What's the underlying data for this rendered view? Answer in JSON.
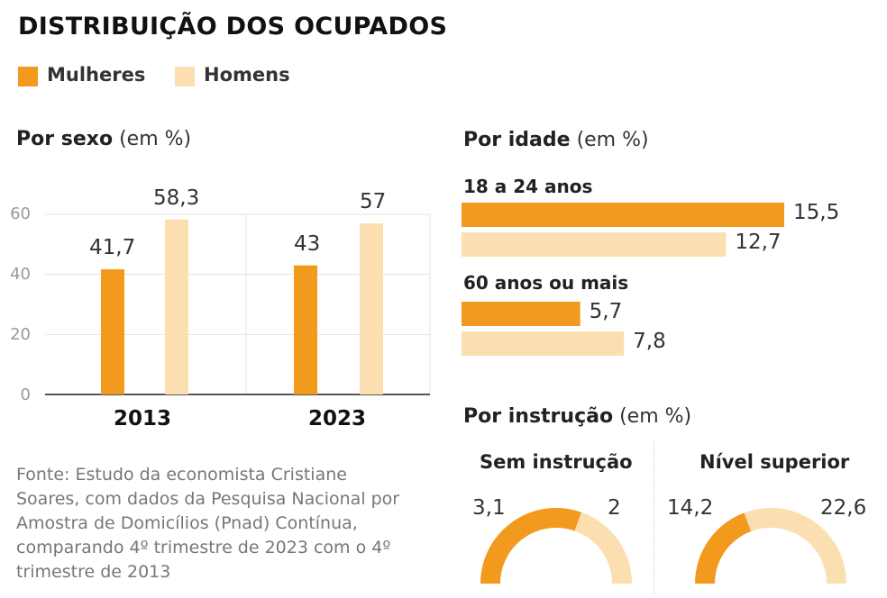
{
  "title": "DISTRIBUIÇÃO DOS OCUPADOS",
  "colors": {
    "mulheres": "#f29a1e",
    "homens": "#fbdfb0",
    "grid": "#e3e3e3",
    "axis": "#555555"
  },
  "legend": [
    {
      "label": "Mulheres",
      "color": "#f29a1e"
    },
    {
      "label": "Homens",
      "color": "#fbdfb0"
    }
  ],
  "sections": {
    "sexo": {
      "bold": "Por sexo",
      "unit": "(em %)"
    },
    "idade": {
      "bold": "Por idade",
      "unit": "(em %)"
    },
    "instrucao": {
      "bold": "Por instrução",
      "unit": "(em %)"
    }
  },
  "source": "Fonte: Estudo da economista Cristiane Soares, com dados da Pesquisa Nacional por Amostra de Domicílios (Pnad) Contínua, comparando 4º trimestre de 2023 com o 4º trimestre de 2013",
  "chart_data": [
    {
      "type": "bar",
      "title": "Por sexo (em %)",
      "categories": [
        "2013",
        "2023"
      ],
      "series": [
        {
          "name": "Mulheres",
          "values": [
            41.7,
            43
          ],
          "labels": [
            "41,7",
            "43"
          ]
        },
        {
          "name": "Homens",
          "values": [
            58.3,
            57
          ],
          "labels": [
            "58,3",
            "57"
          ]
        }
      ],
      "ylim": [
        0,
        60
      ],
      "yticks": [
        "0",
        "20",
        "40",
        "60"
      ],
      "grid": true
    },
    {
      "type": "bar",
      "orientation": "horizontal",
      "title": "Por idade (em %)",
      "categories": [
        "18 a 24 anos",
        "60 anos ou mais"
      ],
      "series": [
        {
          "name": "Mulheres",
          "values": [
            15.5,
            5.7
          ],
          "labels": [
            "15,5",
            "5,7"
          ]
        },
        {
          "name": "Homens",
          "values": [
            12.7,
            7.8
          ],
          "labels": [
            "12,7",
            "7,8"
          ]
        }
      ]
    },
    {
      "type": "pie",
      "style": "semi-donut",
      "title": "Por instrução (em %)",
      "groups": [
        {
          "name": "Sem instrução",
          "mulheres": 3.1,
          "homens": 2,
          "mulheres_label": "3,1",
          "homens_label": "2"
        },
        {
          "name": "Nível superior",
          "mulheres": 14.2,
          "homens": 22.6,
          "mulheres_label": "14,2",
          "homens_label": "22,6"
        }
      ]
    }
  ]
}
